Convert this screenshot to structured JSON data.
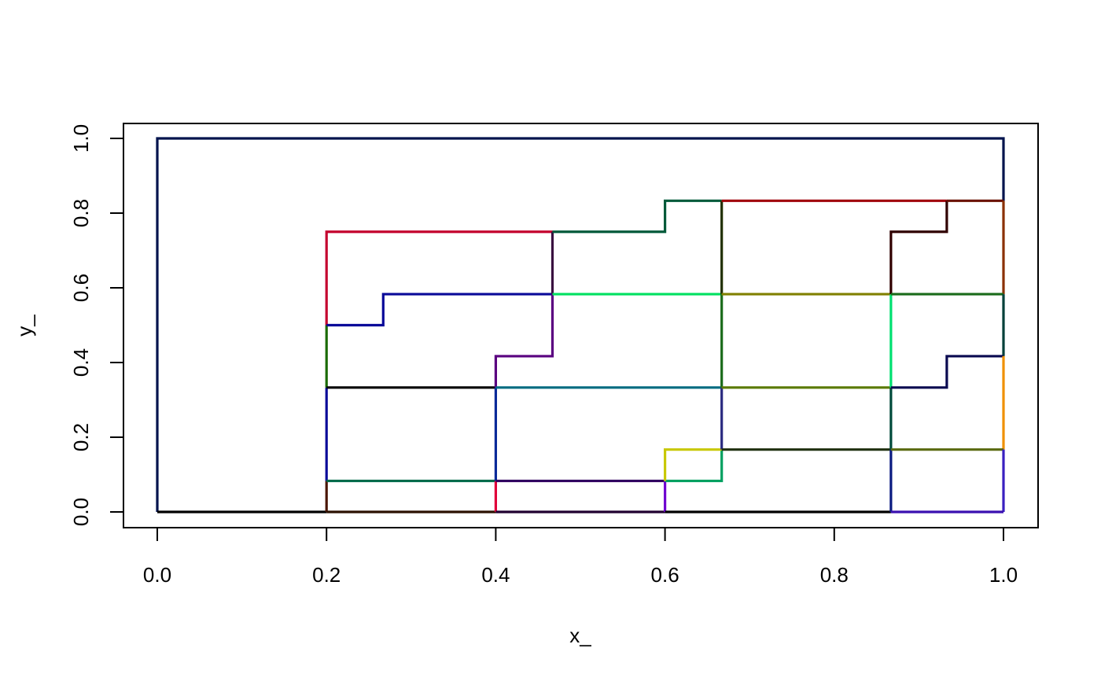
{
  "chart_data": {
    "type": "line",
    "xlabel": "x_",
    "ylabel": "y_",
    "xlim": [
      0.0,
      1.0
    ],
    "ylim": [
      0.0,
      1.0
    ],
    "x_ticks": [
      "0.0",
      "0.2",
      "0.4",
      "0.6",
      "0.8",
      "1.0"
    ],
    "y_ticks": [
      "0.0",
      "0.2",
      "0.4",
      "0.6",
      "0.8",
      "1.0"
    ],
    "grid": false,
    "legend": "none",
    "segments": [
      {
        "color": "#00134d",
        "points": [
          [
            0,
            0
          ],
          [
            0,
            1
          ],
          [
            1,
            1
          ],
          [
            1,
            0.833
          ]
        ]
      },
      {
        "color": "#000000",
        "points": [
          [
            0,
            0
          ],
          [
            0.2,
            0
          ]
        ]
      },
      {
        "color": "#4a1500",
        "points": [
          [
            0.2,
            0
          ],
          [
            0.2,
            0.083
          ]
        ]
      },
      {
        "color": "#0a0a99",
        "points": [
          [
            0.2,
            0.083
          ],
          [
            0.2,
            0.333
          ]
        ]
      },
      {
        "color": "#1a6b00",
        "points": [
          [
            0.2,
            0.333
          ],
          [
            0.2,
            0.5
          ]
        ]
      },
      {
        "color": "#c4002e",
        "points": [
          [
            0.2,
            0.5
          ],
          [
            0.2,
            0.75
          ],
          [
            0.467,
            0.75
          ]
        ]
      },
      {
        "color": "#0a0a99",
        "points": [
          [
            0.2,
            0.5
          ],
          [
            0.267,
            0.5
          ],
          [
            0.267,
            0.583
          ],
          [
            0.467,
            0.583
          ]
        ]
      },
      {
        "color": "#000000",
        "points": [
          [
            0.2,
            0.333
          ],
          [
            0.4,
            0.333
          ]
        ]
      },
      {
        "color": "#006b4a",
        "points": [
          [
            0.2,
            0.083
          ],
          [
            0.4,
            0.083
          ]
        ]
      },
      {
        "color": "#2a1000",
        "points": [
          [
            0.2,
            0
          ],
          [
            0.4,
            0
          ]
        ]
      },
      {
        "color": "#e0003a",
        "points": [
          [
            0.4,
            0
          ],
          [
            0.4,
            0.083
          ]
        ]
      },
      {
        "color": "#0a2a99",
        "points": [
          [
            0.4,
            0.083
          ],
          [
            0.4,
            0.333
          ]
        ]
      },
      {
        "color": "#5a0080",
        "points": [
          [
            0.4,
            0.333
          ],
          [
            0.4,
            0.417
          ],
          [
            0.467,
            0.417
          ],
          [
            0.467,
            0.583
          ]
        ]
      },
      {
        "color": "#3a1040",
        "points": [
          [
            0.467,
            0.583
          ],
          [
            0.467,
            0.75
          ]
        ]
      },
      {
        "color": "#005a3a",
        "points": [
          [
            0.467,
            0.75
          ],
          [
            0.6,
            0.75
          ],
          [
            0.6,
            0.833
          ],
          [
            0.667,
            0.833
          ]
        ]
      },
      {
        "color": "#00e060",
        "points": [
          [
            0.467,
            0.583
          ],
          [
            0.667,
            0.583
          ]
        ]
      },
      {
        "color": "#006b80",
        "points": [
          [
            0.4,
            0.333
          ],
          [
            0.667,
            0.333
          ]
        ]
      },
      {
        "color": "#300060",
        "points": [
          [
            0.4,
            0.083
          ],
          [
            0.6,
            0.083
          ]
        ]
      },
      {
        "color": "#200030",
        "points": [
          [
            0.4,
            0
          ],
          [
            0.6,
            0
          ]
        ]
      },
      {
        "color": "#7000d0",
        "points": [
          [
            0.6,
            0
          ],
          [
            0.6,
            0.083
          ]
        ]
      },
      {
        "color": "#00a060",
        "points": [
          [
            0.6,
            0.083
          ],
          [
            0.667,
            0.083
          ],
          [
            0.667,
            0.167
          ]
        ]
      },
      {
        "color": "#c8c800",
        "points": [
          [
            0.6,
            0.083
          ],
          [
            0.6,
            0.167
          ],
          [
            0.667,
            0.167
          ]
        ]
      },
      {
        "color": "#000000",
        "points": [
          [
            0.6,
            0
          ],
          [
            0.867,
            0
          ]
        ]
      },
      {
        "color": "#2a2a80",
        "points": [
          [
            0.667,
            0.167
          ],
          [
            0.667,
            0.333
          ]
        ]
      },
      {
        "color": "#1a6b1a",
        "points": [
          [
            0.667,
            0.333
          ],
          [
            0.667,
            0.583
          ]
        ]
      },
      {
        "color": "#203000",
        "points": [
          [
            0.667,
            0.583
          ],
          [
            0.667,
            0.833
          ]
        ]
      },
      {
        "color": "#a0000a",
        "points": [
          [
            0.667,
            0.833
          ],
          [
            0.933,
            0.833
          ]
        ]
      },
      {
        "color": "#808000",
        "points": [
          [
            0.667,
            0.583
          ],
          [
            0.867,
            0.583
          ]
        ]
      },
      {
        "color": "#5a7a00",
        "points": [
          [
            0.667,
            0.333
          ],
          [
            0.867,
            0.333
          ]
        ]
      },
      {
        "color": "#203010",
        "points": [
          [
            0.667,
            0.167
          ],
          [
            0.867,
            0.167
          ]
        ]
      },
      {
        "color": "#0a1a80",
        "points": [
          [
            0.867,
            0
          ],
          [
            0.867,
            0.167
          ]
        ]
      },
      {
        "color": "#004a3a",
        "points": [
          [
            0.867,
            0.167
          ],
          [
            0.867,
            0.333
          ]
        ]
      },
      {
        "color": "#00e070",
        "points": [
          [
            0.867,
            0.333
          ],
          [
            0.867,
            0.583
          ]
        ]
      },
      {
        "color": "#300000",
        "points": [
          [
            0.867,
            0.583
          ],
          [
            0.867,
            0.75
          ],
          [
            0.933,
            0.75
          ],
          [
            0.933,
            0.833
          ]
        ]
      },
      {
        "color": "#6a1000",
        "points": [
          [
            0.933,
            0.833
          ],
          [
            1,
            0.833
          ]
        ]
      },
      {
        "color": "#8a3000",
        "points": [
          [
            1,
            0.833
          ],
          [
            1,
            0.583
          ]
        ]
      },
      {
        "color": "#1a6b1a",
        "points": [
          [
            0.867,
            0.583
          ],
          [
            1,
            0.583
          ]
        ]
      },
      {
        "color": "#00403a",
        "points": [
          [
            1,
            0.583
          ],
          [
            1,
            0.417
          ]
        ]
      },
      {
        "color": "#0a0a50",
        "points": [
          [
            0.867,
            0.333
          ],
          [
            0.933,
            0.333
          ],
          [
            0.933,
            0.417
          ],
          [
            1,
            0.417
          ]
        ]
      },
      {
        "color": "#f09000",
        "points": [
          [
            1,
            0.417
          ],
          [
            1,
            0.167
          ]
        ]
      },
      {
        "color": "#5a6a10",
        "points": [
          [
            0.867,
            0.167
          ],
          [
            1,
            0.167
          ]
        ]
      },
      {
        "color": "#3a20c0",
        "points": [
          [
            1,
            0.167
          ],
          [
            1,
            0
          ]
        ]
      },
      {
        "color": "#3a10b0",
        "points": [
          [
            0.867,
            0
          ],
          [
            1,
            0
          ]
        ]
      }
    ]
  }
}
